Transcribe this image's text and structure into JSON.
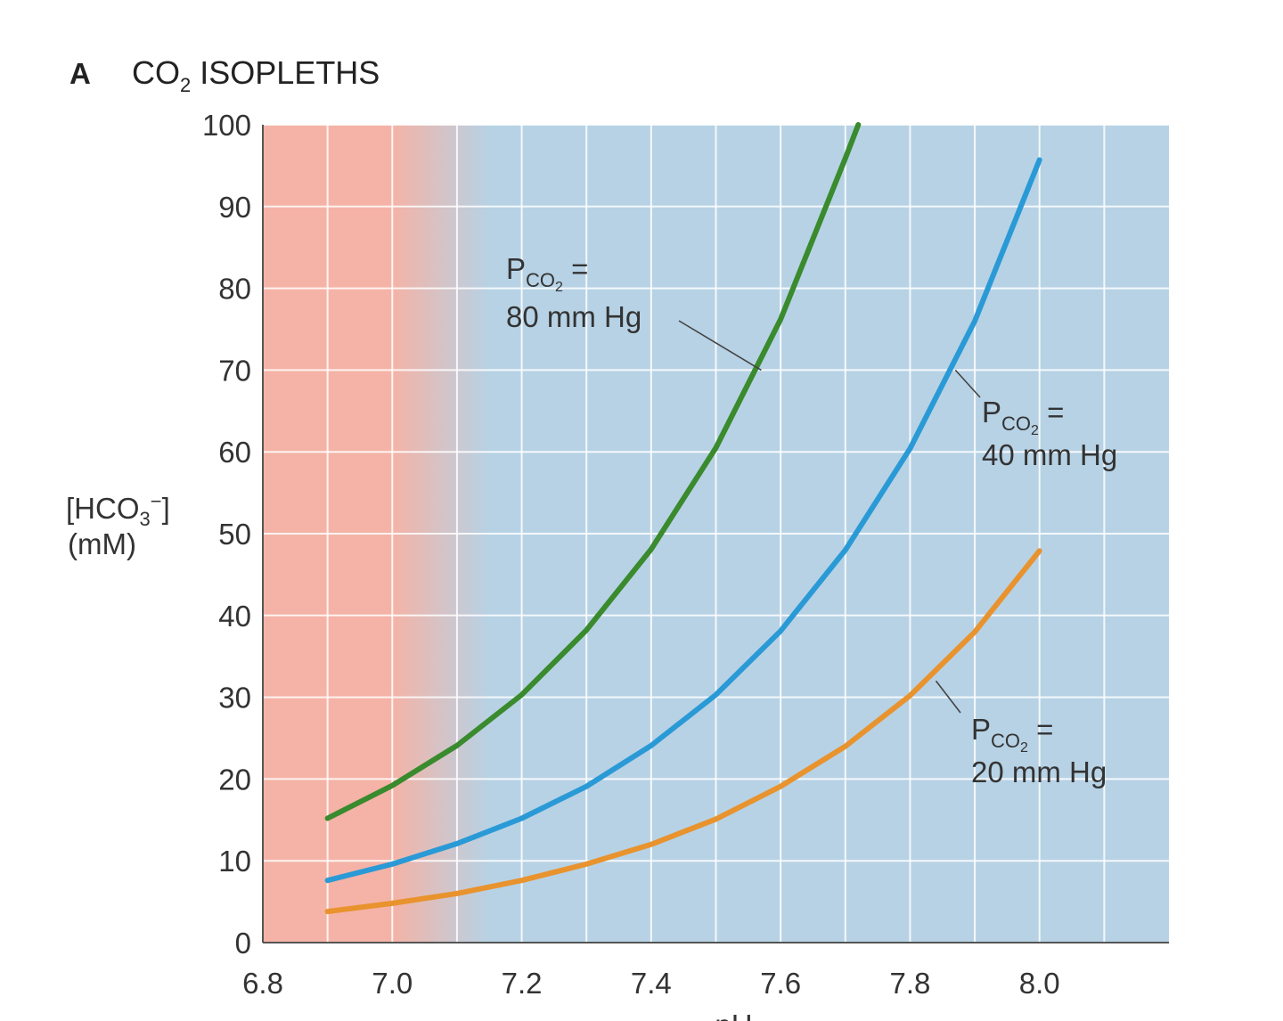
{
  "chart_data": {
    "type": "line",
    "panel_label": "A",
    "title": {
      "main": "CO",
      "sub": "2",
      "rest": " ISOPLETHS"
    },
    "ylabel": {
      "line1_main": "[HCO",
      "line1_sub": "3",
      "line1_sup": "−",
      "line1_end": "]",
      "line2": "(mM)"
    },
    "xlabel": "pH",
    "xlim": [
      6.8,
      8.2
    ],
    "ylim": [
      0,
      100
    ],
    "x_ticks": [
      "6.8",
      "7.0",
      "7.2",
      "7.4",
      "7.6",
      "7.8",
      "8.0"
    ],
    "x_tick_values": [
      6.8,
      7.0,
      7.2,
      7.4,
      7.6,
      7.8,
      8.0
    ],
    "y_ticks": [
      "0",
      "10",
      "20",
      "30",
      "40",
      "50",
      "60",
      "70",
      "80",
      "90",
      "100"
    ],
    "y_tick_values": [
      0,
      10,
      20,
      30,
      40,
      50,
      60,
      70,
      80,
      90,
      100
    ],
    "grid": true,
    "background": {
      "acid_color": "#f4b3a6",
      "base_color": "#b7d2e5",
      "transition_ph": [
        7.0,
        7.15
      ]
    },
    "series": [
      {
        "key": "80",
        "color": "#3a8a2e",
        "x": [
          6.9,
          7.0,
          7.1,
          7.2,
          7.3,
          7.4,
          7.5,
          7.6,
          7.7,
          7.72
        ],
        "y": [
          15.2,
          19.2,
          24.1,
          30.3,
          38.2,
          48.1,
          60.5,
          76.2,
          95.9,
          100.0
        ]
      },
      {
        "key": "40",
        "color": "#2a9ad6",
        "x": [
          6.9,
          7.0,
          7.1,
          7.2,
          7.3,
          7.4,
          7.5,
          7.6,
          7.7,
          7.8,
          7.9,
          8.0
        ],
        "y": [
          7.6,
          9.6,
          12.1,
          15.2,
          19.1,
          24.1,
          30.3,
          38.1,
          48.0,
          60.4,
          76.0,
          95.7
        ]
      },
      {
        "key": "20",
        "color": "#e8932e",
        "x": [
          6.9,
          7.0,
          7.1,
          7.2,
          7.3,
          7.4,
          7.5,
          7.6,
          7.7,
          7.8,
          7.9,
          8.0
        ],
        "y": [
          3.8,
          4.8,
          6.0,
          7.6,
          9.6,
          12.0,
          15.1,
          19.1,
          24.0,
          30.2,
          38.0,
          47.9
        ]
      }
    ],
    "annotations": [
      {
        "key": "80",
        "p": "P",
        "sub": "CO",
        "subsub": "2",
        "eq": " =",
        "value": "80 mm Hg",
        "pointer_x": 7.57,
        "pointer_y": 70
      },
      {
        "key": "40",
        "p": "P",
        "sub": "CO",
        "subsub": "2",
        "eq": " =",
        "value": "40 mm Hg",
        "pointer_x": 7.87,
        "pointer_y": 70
      },
      {
        "key": "20",
        "p": "P",
        "sub": "CO",
        "subsub": "2",
        "eq": " =",
        "value": "20 mm Hg",
        "pointer_x": 7.84,
        "pointer_y": 32
      }
    ]
  }
}
